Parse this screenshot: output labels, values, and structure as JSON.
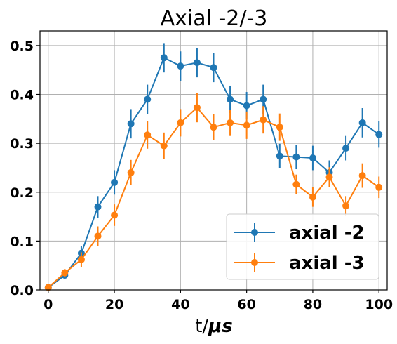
{
  "chart_data": {
    "type": "line",
    "title": "Axial -2/-3",
    "xlabel_prefix": "t/",
    "xlabel_unit": "μs",
    "ylabel": "",
    "xlim": [
      -2.5,
      102.5
    ],
    "ylim": [
      0,
      0.53
    ],
    "xticks": [
      0,
      20,
      40,
      60,
      80,
      100
    ],
    "yticks": [
      0.0,
      0.1,
      0.2,
      0.3,
      0.4,
      0.5
    ],
    "xtick_labels": [
      "0",
      "20",
      "40",
      "60",
      "80",
      "100"
    ],
    "ytick_labels": [
      "0.0",
      "0.1",
      "0.2",
      "0.3",
      "0.4",
      "0.5"
    ],
    "grid": true,
    "legend_position": "lower-right",
    "x": [
      0,
      5,
      10,
      15,
      20,
      25,
      30,
      35,
      40,
      45,
      50,
      55,
      60,
      65,
      70,
      75,
      80,
      85,
      90,
      95,
      100
    ],
    "series": [
      {
        "name": "axial -2",
        "color": "#1f77b4",
        "values": [
          0.005,
          0.03,
          0.075,
          0.17,
          0.22,
          0.34,
          0.39,
          0.475,
          0.458,
          0.465,
          0.455,
          0.39,
          0.377,
          0.39,
          0.274,
          0.272,
          0.27,
          0.24,
          0.29,
          0.342,
          0.318
        ],
        "errors": [
          0.003,
          0.008,
          0.015,
          0.022,
          0.025,
          0.03,
          0.03,
          0.03,
          0.03,
          0.03,
          0.03,
          0.028,
          0.028,
          0.03,
          0.025,
          0.025,
          0.025,
          0.025,
          0.025,
          0.03,
          0.027
        ]
      },
      {
        "name": "axial -3",
        "color": "#ff7f0e",
        "values": [
          0.005,
          0.035,
          0.062,
          0.11,
          0.153,
          0.24,
          0.317,
          0.295,
          0.342,
          0.373,
          0.333,
          0.342,
          0.337,
          0.348,
          0.333,
          0.216,
          0.19,
          0.231,
          0.172,
          0.234,
          0.21
        ],
        "errors": [
          0.003,
          0.008,
          0.015,
          0.02,
          0.022,
          0.026,
          0.028,
          0.027,
          0.028,
          0.03,
          0.027,
          0.027,
          0.028,
          0.028,
          0.028,
          0.02,
          0.02,
          0.02,
          0.02,
          0.025,
          0.022
        ]
      }
    ]
  }
}
